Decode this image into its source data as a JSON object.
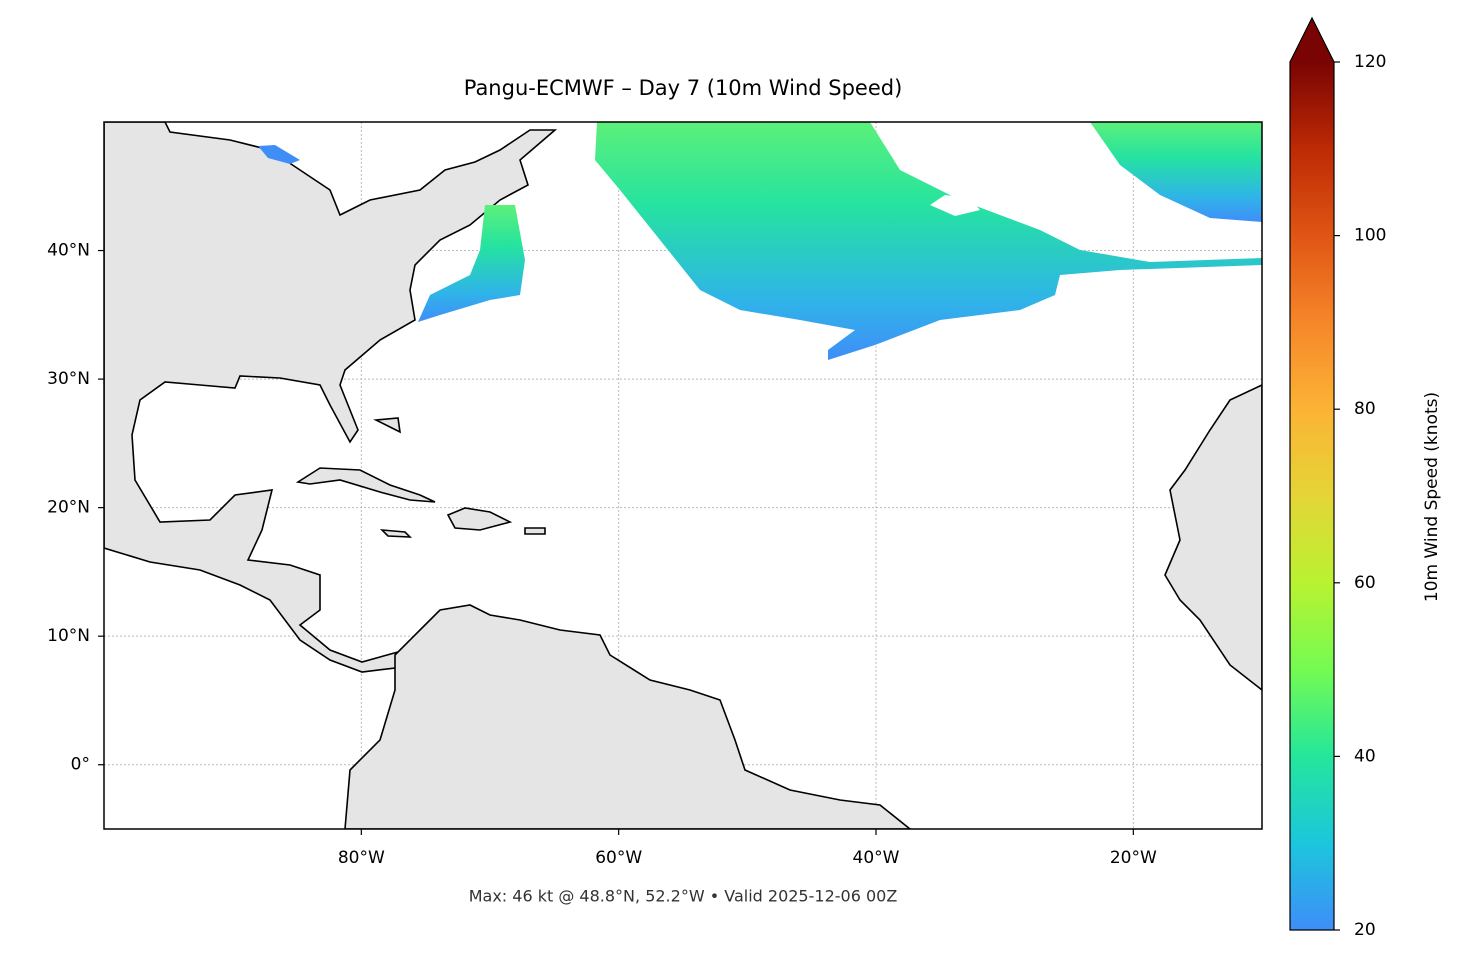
{
  "chart_data": {
    "type": "map",
    "title": "Pangu-ECMWF – Day 7 (10m Wind Speed)",
    "subtitle": "Max: 46 kt @ 48.8°N, 52.2°W • Valid 2025-12-06 00Z",
    "xlim": [
      -100,
      -10
    ],
    "ylim": [
      -5,
      50
    ],
    "xticks": [
      {
        "value": -80,
        "label": "80°W"
      },
      {
        "value": -60,
        "label": "60°W"
      },
      {
        "value": -40,
        "label": "40°W"
      },
      {
        "value": -20,
        "label": "20°W"
      }
    ],
    "yticks": [
      {
        "value": 0,
        "label": "0°"
      },
      {
        "value": 10,
        "label": "10°N"
      },
      {
        "value": 20,
        "label": "20°N"
      },
      {
        "value": 30,
        "label": "30°N"
      },
      {
        "value": 40,
        "label": "40°N"
      }
    ],
    "grid": true,
    "colorbar": {
      "label": "10m Wind Speed (knots)",
      "lim": [
        20,
        120
      ],
      "ticks": [
        20,
        40,
        60,
        80,
        100,
        120
      ],
      "extend": "max",
      "colors": [
        "#3f8ef8",
        "#1cc6dc",
        "#24e69b",
        "#74fb52",
        "#b9f231",
        "#e4d537",
        "#fcb335",
        "#f6862a",
        "#e05514",
        "#bd2a05",
        "#7a0403"
      ]
    }
  }
}
